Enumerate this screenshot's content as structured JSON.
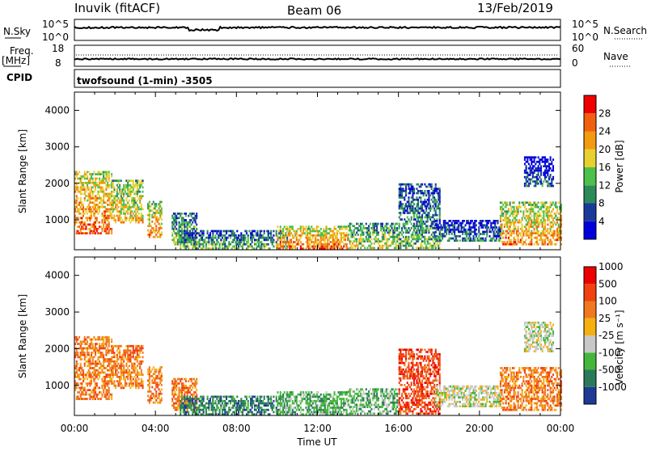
{
  "header": {
    "station": "Inuvik (fitACF)",
    "beam": "Beam 06",
    "date": "13/Feb/2019"
  },
  "top_panels": {
    "nsky_label": "N.Sky",
    "nsky_ticks": [
      "10^5",
      "10^0"
    ],
    "nsearch_label": "N.Search",
    "nsearch_ticks": [
      "10^5",
      "10^0"
    ],
    "freq_label_line1": "Freq.",
    "freq_label_line2": "[MHz]",
    "freq_ticks": [
      "18",
      "8"
    ],
    "nave_label": "Nave",
    "nave_ticks": [
      "60",
      "0"
    ],
    "cpid_label": "CPID",
    "cpid_text": "twofsound (1-min) -3505"
  },
  "colors": {
    "scale": [
      "#0000dd",
      "#1a3a9a",
      "#2c8a5a",
      "#4cc04a",
      "#e8d030",
      "#f29a10",
      "#f06010",
      "#ee0000"
    ],
    "velocity": [
      "#1e3a96",
      "#2a7a5a",
      "#45b63c",
      "#c8c8c8",
      "#f5b010",
      "#f07820",
      "#f24010",
      "#ee0000"
    ]
  },
  "chart_data": [
    {
      "type": "heatmap",
      "name_key": "power",
      "ylabel": "Slant Range [km]",
      "yticks": [
        1000,
        2000,
        3000,
        4000
      ],
      "ylim": [
        180,
        4500
      ],
      "colorbar_label": "Power [dB]",
      "colorbar_ticks": [
        "4",
        "8",
        "12",
        "16",
        "20",
        "24",
        "28"
      ],
      "colorbar_range": [
        0,
        32
      ]
    },
    {
      "type": "heatmap",
      "name_key": "velocity",
      "ylabel": "Slant Range [km]",
      "yticks": [
        1000,
        2000,
        3000,
        4000
      ],
      "ylim": [
        180,
        4500
      ],
      "xlabel": "Time UT",
      "xticks": [
        "00:00",
        "04:00",
        "08:00",
        "12:00",
        "16:00",
        "20:00",
        "00:00"
      ],
      "colorbar_label": "Velocity [m s⁻¹]",
      "colorbar_ticks": [
        "-1000",
        "-500",
        "-100",
        "-25",
        "25",
        "100",
        "500",
        "1000"
      ]
    }
  ]
}
